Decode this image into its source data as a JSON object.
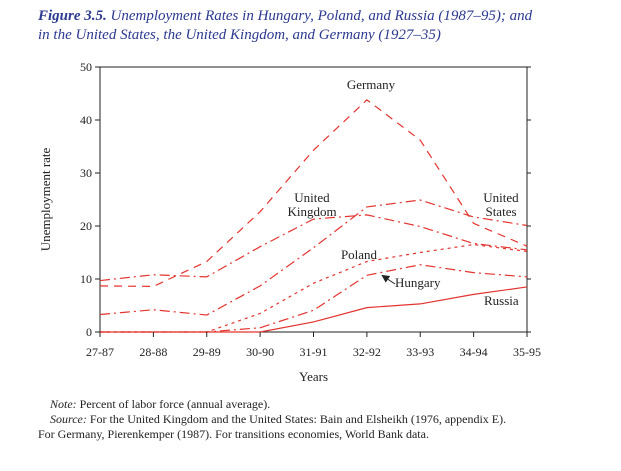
{
  "figure": {
    "label": "Figure 3.5.",
    "title_line1": "Unemployment Rates in Hungary, Poland, and Russia (1987–95); and",
    "title_line2": "in the United States, the United Kingdom, and Germany (1927–35)"
  },
  "notes": {
    "note_label": "Note:",
    "note_text": "Percent of labor force (annual average).",
    "source_label": "Source:",
    "source_text": "For the United Kingdom and the United States: Bain and Elsheikh (1976, appendix E).",
    "source_text2": "For Germany, Pierenkemper (1987). For transitions economies, World Bank data."
  },
  "chart_data": {
    "type": "line",
    "title": "",
    "xlabel": "Years",
    "ylabel": "Unemployment rate",
    "categories": [
      "27-87",
      "28-88",
      "29-89",
      "30-90",
      "31-91",
      "32-92",
      "33-93",
      "34-94",
      "35-95"
    ],
    "ylim": [
      0,
      50
    ],
    "yticks": [
      0,
      10,
      20,
      30,
      40,
      50
    ],
    "grid": false,
    "color": "#e3342f",
    "series": [
      {
        "name": "Germany",
        "style": "dash",
        "values": [
          8.7,
          8.6,
          13.3,
          22.7,
          34.3,
          43.8,
          36.2,
          20.5,
          16.2
        ]
      },
      {
        "name": "United States",
        "style": "dashdot",
        "values": [
          3.3,
          4.2,
          3.2,
          8.7,
          15.9,
          23.6,
          24.9,
          21.7,
          20.1
        ]
      },
      {
        "name": "United Kingdom",
        "style": "dashdot",
        "values": [
          9.7,
          10.8,
          10.4,
          16.1,
          21.3,
          22.1,
          19.9,
          16.7,
          15.5
        ]
      },
      {
        "name": "Poland",
        "style": "dot",
        "values": [
          0,
          0,
          0,
          3.5,
          9.2,
          13.3,
          15.0,
          16.5,
          15.2
        ]
      },
      {
        "name": "Hungary",
        "style": "dashdot",
        "values": [
          0,
          0,
          0,
          0.8,
          4.1,
          10.7,
          12.7,
          11.2,
          10.4
        ]
      },
      {
        "name": "Russia",
        "style": "solid",
        "values": [
          0,
          0,
          0,
          0,
          1.9,
          4.6,
          5.3,
          7.1,
          8.5
        ]
      }
    ],
    "annotations": {
      "germany": "Germany",
      "uk_line1": "United",
      "uk_line2": "Kingdom",
      "us_line1": "United",
      "us_line2": "States",
      "poland": "Poland",
      "hungary": "Hungary",
      "russia": "Russia"
    }
  }
}
